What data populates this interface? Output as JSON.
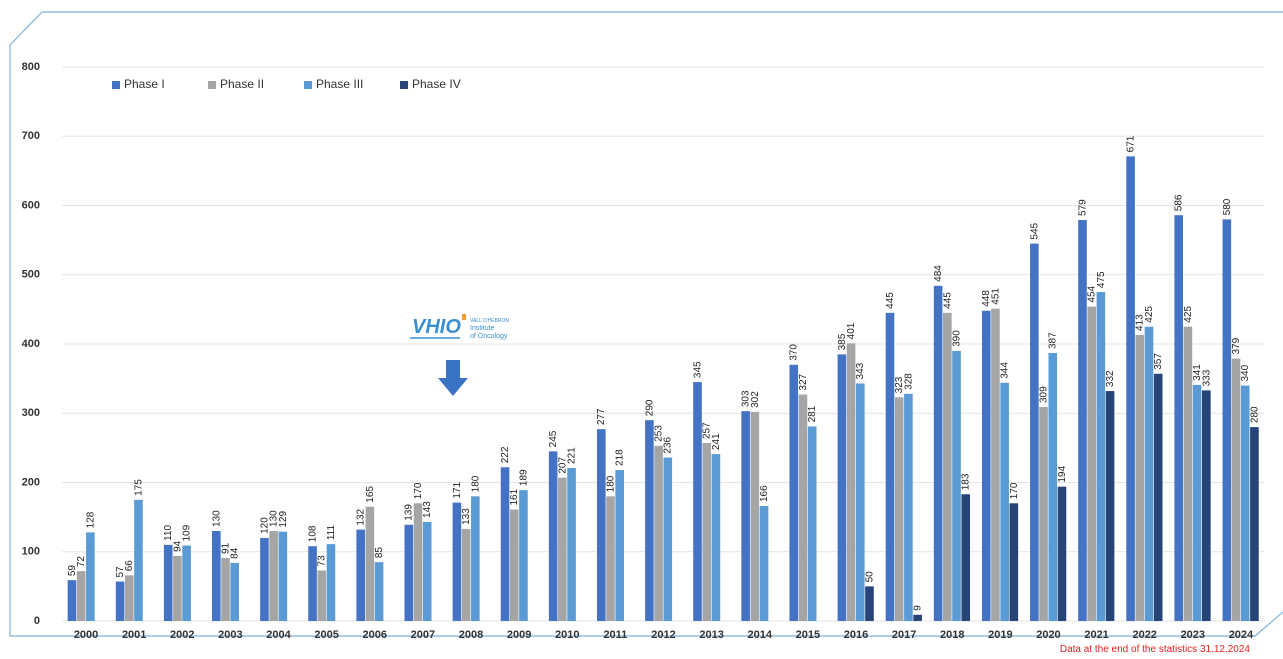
{
  "chart_data": {
    "type": "bar",
    "categories": [
      "2000",
      "2001",
      "2002",
      "2003",
      "2004",
      "2005",
      "2006",
      "2007",
      "2008",
      "2009",
      "2010",
      "2011",
      "2012",
      "2013",
      "2014",
      "2015",
      "2016",
      "2017",
      "2018",
      "2019",
      "2020",
      "2021",
      "2022",
      "2023",
      "2024"
    ],
    "series": [
      {
        "name": "Phase I",
        "color": "#4472c4",
        "values": [
          59,
          57,
          110,
          130,
          120,
          108,
          132,
          139,
          171,
          222,
          245,
          277,
          290,
          345,
          303,
          370,
          385,
          445,
          484,
          448,
          545,
          579,
          671,
          586,
          580
        ]
      },
      {
        "name": "Phase II",
        "color": "#a5a5a5",
        "values": [
          72,
          66,
          94,
          91,
          130,
          73,
          165,
          170,
          133,
          161,
          207,
          180,
          253,
          257,
          302,
          327,
          401,
          323,
          445,
          451,
          309,
          454,
          413,
          425,
          379
        ]
      },
      {
        "name": "Phase III",
        "color": "#5b9bd5",
        "values": [
          128,
          175,
          109,
          84,
          129,
          111,
          85,
          143,
          180,
          189,
          221,
          218,
          236,
          241,
          166,
          281,
          343,
          328,
          390,
          344,
          387,
          475,
          425,
          341,
          340
        ]
      },
      {
        "name": "Phase IV",
        "color": "#264478",
        "values": [
          null,
          null,
          null,
          null,
          null,
          null,
          null,
          null,
          null,
          null,
          null,
          null,
          null,
          null,
          null,
          null,
          50,
          9,
          183,
          170,
          194,
          332,
          357,
          333,
          280
        ]
      }
    ],
    "ylim": [
      0,
      800
    ],
    "yticks": [
      0,
      100,
      200,
      300,
      400,
      500,
      600,
      700,
      800
    ],
    "grid": true,
    "legend": "top-left",
    "logo": {
      "name": "VHIO",
      "org": "VALL D'HEBRON",
      "line1": "Institute",
      "line2": "of Oncology"
    },
    "footnote": "Data at the end of the statistics 31.12.2024"
  }
}
